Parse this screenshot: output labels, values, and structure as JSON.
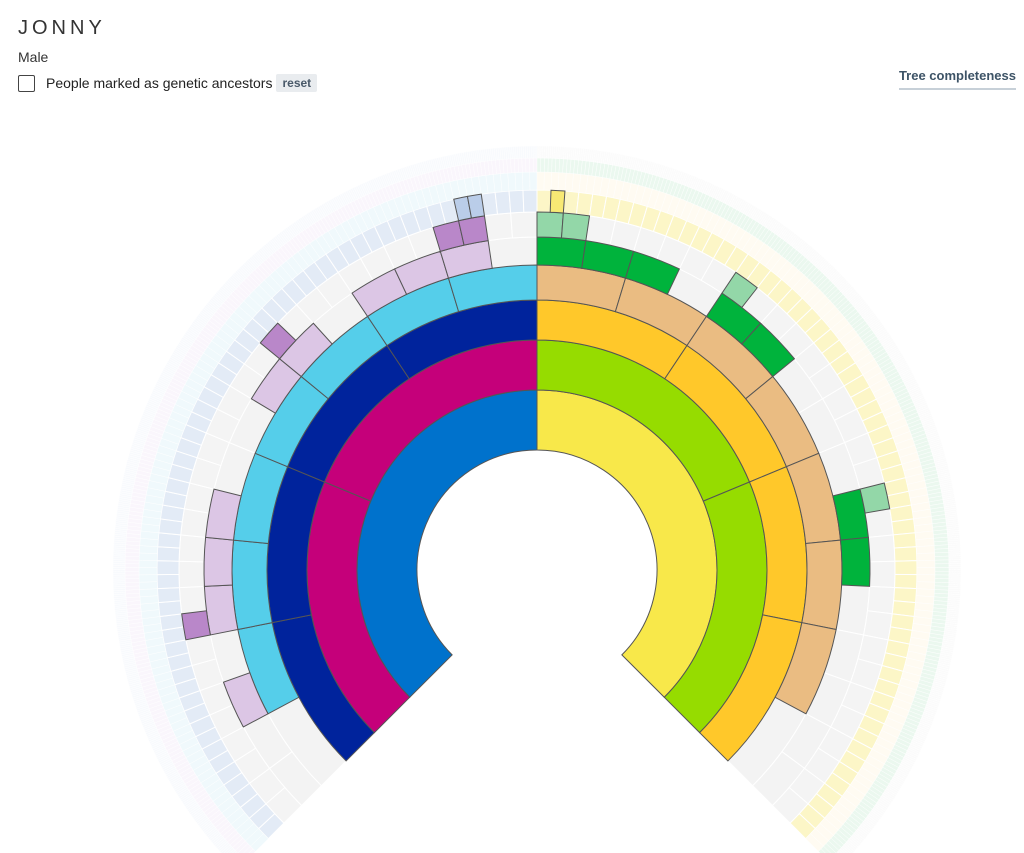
{
  "person": {
    "name": "JONNY",
    "gender": "Male"
  },
  "filter": {
    "label": "People marked as genetic ancestors",
    "checked": false,
    "reset_label": "reset"
  },
  "tree_completeness_label": "Tree completeness",
  "fan_chart": {
    "generations": 10,
    "branch_colors": [
      [
        "#0072CC",
        "#C5007A",
        "#00239C",
        "#55CEEA",
        "#DCC6E5",
        "#B987C9",
        "#BACDE9",
        "#D4EDF7",
        "#EFE4F6",
        "#EAF0F8"
      ],
      [
        "#F8E84A",
        "#96DC00",
        "#FFC82A",
        "#EABC82",
        "#00B33C",
        "#93D7A8",
        "#F8E974",
        "#FEF4D8",
        "#C5EAD0",
        "#F3F3F3"
      ]
    ],
    "empty_color": "#F3F3F3",
    "known_ancestors": [
      [
        "F",
        "M"
      ],
      [
        "FF",
        "FM",
        "MF",
        "MM"
      ],
      [
        "FFF",
        "FFM",
        "FMF",
        "FMM",
        "MFF",
        "MFM",
        "MMF",
        "MMM"
      ],
      [
        "FFFM",
        "FFMF",
        "FFMM",
        "FMFF",
        "FMFM",
        "FMMF",
        "FMMM",
        "MFFF",
        "MFFM",
        "MFMF",
        "MFMM",
        "MMFF",
        "MMFM",
        "MMMF"
      ],
      [
        "FFFMF",
        "FFMFF",
        "FFMFM",
        "FFMMF",
        "FMFFM",
        "FMFMF",
        "FMMFF",
        "FMMFM",
        "FMMMF",
        "MFFFF",
        "MFFFM",
        "MFFMF",
        "MFMFF",
        "MFMFM",
        "MMFFM",
        "MMFMF"
      ],
      [
        "FFMFFF",
        "FMFMFF",
        "FMMMFF",
        "FMMMFM",
        "MFFFFF",
        "MFFFFM",
        "MFMFFF",
        "MMFFMF"
      ],
      [
        "FMMMFMF",
        "FMMMFMM",
        "MFFFFFM"
      ]
    ]
  }
}
